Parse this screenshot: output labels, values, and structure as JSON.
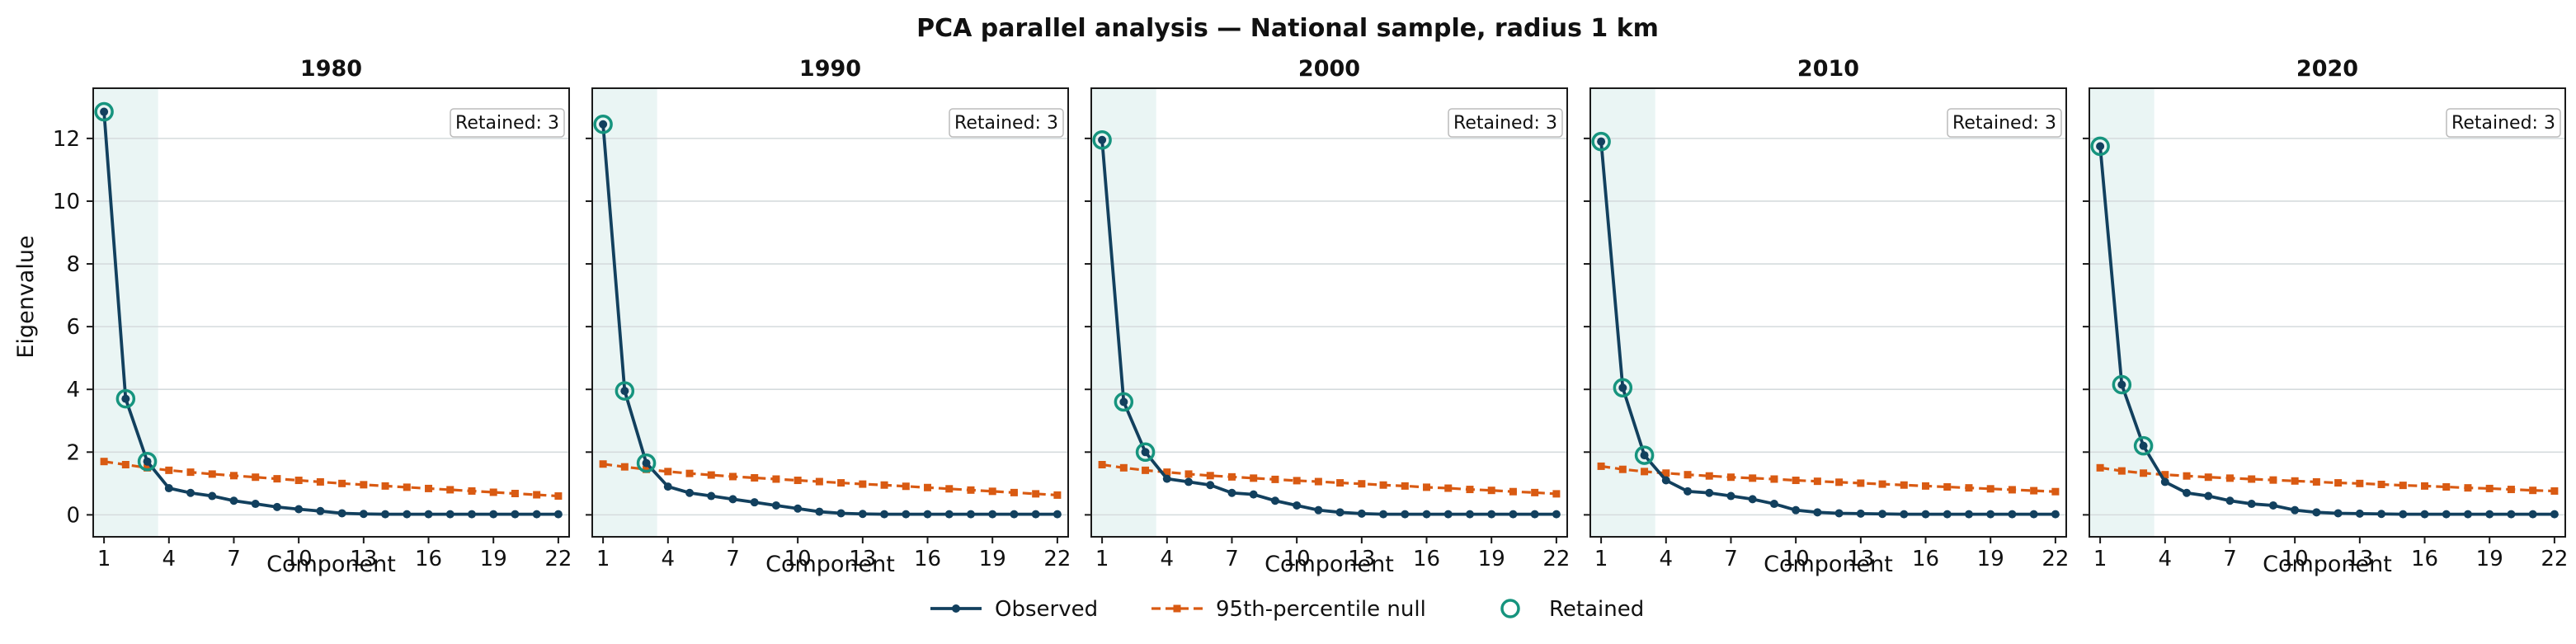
{
  "chart_data": {
    "type": "line",
    "title": "PCA parallel analysis — National sample, radius 1 km",
    "xlabel": "Component",
    "ylabel": "Eigenvalue",
    "xlim": [
      0.5,
      22.5
    ],
    "ylim": [
      -0.7,
      13.6
    ],
    "xticks": [
      1,
      4,
      7,
      10,
      13,
      16,
      19,
      22
    ],
    "yticks": [
      0,
      2,
      4,
      6,
      8,
      10,
      12
    ],
    "grid": "horizontal",
    "legend": {
      "placement": "bottom-center",
      "entries": [
        "Observed",
        "95th-percentile null",
        "Retained"
      ]
    },
    "colors": {
      "observed": "#12405e",
      "null": "#d95a12",
      "retained": "#16947e",
      "shade": "#eaf5f4"
    },
    "panels": [
      {
        "title": "1980",
        "annotation": "Retained: 3",
        "retained": 3,
        "series": [
          {
            "name": "Observed",
            "x": [
              1,
              2,
              3,
              4,
              5,
              6,
              7,
              8,
              9,
              10,
              11,
              12,
              13,
              14,
              15,
              16,
              17,
              18,
              19,
              20,
              21,
              22
            ],
            "values": [
              12.85,
              3.7,
              1.7,
              0.85,
              0.7,
              0.6,
              0.45,
              0.35,
              0.25,
              0.18,
              0.12,
              0.05,
              0.03,
              0.02,
              0.02,
              0.02,
              0.02,
              0.02,
              0.02,
              0.02,
              0.02,
              0.02
            ]
          },
          {
            "name": "95th-percentile null",
            "x": [
              1,
              2,
              3,
              4,
              5,
              6,
              7,
              8,
              9,
              10,
              11,
              12,
              13,
              14,
              15,
              16,
              17,
              18,
              19,
              20,
              21,
              22
            ],
            "values": [
              1.7,
              1.6,
              1.5,
              1.42,
              1.36,
              1.3,
              1.25,
              1.2,
              1.15,
              1.1,
              1.05,
              1.0,
              0.96,
              0.92,
              0.88,
              0.84,
              0.8,
              0.76,
              0.72,
              0.68,
              0.64,
              0.6
            ]
          }
        ]
      },
      {
        "title": "1990",
        "annotation": "Retained: 3",
        "retained": 3,
        "series": [
          {
            "name": "Observed",
            "x": [
              1,
              2,
              3,
              4,
              5,
              6,
              7,
              8,
              9,
              10,
              11,
              12,
              13,
              14,
              15,
              16,
              17,
              18,
              19,
              20,
              21,
              22
            ],
            "values": [
              12.45,
              3.95,
              1.65,
              0.9,
              0.7,
              0.6,
              0.5,
              0.4,
              0.3,
              0.2,
              0.1,
              0.05,
              0.03,
              0.02,
              0.02,
              0.02,
              0.02,
              0.02,
              0.02,
              0.02,
              0.02,
              0.02
            ]
          },
          {
            "name": "95th-percentile null",
            "x": [
              1,
              2,
              3,
              4,
              5,
              6,
              7,
              8,
              9,
              10,
              11,
              12,
              13,
              14,
              15,
              16,
              17,
              18,
              19,
              20,
              21,
              22
            ],
            "values": [
              1.62,
              1.53,
              1.45,
              1.38,
              1.32,
              1.27,
              1.22,
              1.18,
              1.14,
              1.1,
              1.06,
              1.02,
              0.98,
              0.95,
              0.91,
              0.87,
              0.83,
              0.79,
              0.75,
              0.71,
              0.67,
              0.63
            ]
          }
        ]
      },
      {
        "title": "2000",
        "annotation": "Retained: 3",
        "retained": 3,
        "series": [
          {
            "name": "Observed",
            "x": [
              1,
              2,
              3,
              4,
              5,
              6,
              7,
              8,
              9,
              10,
              11,
              12,
              13,
              14,
              15,
              16,
              17,
              18,
              19,
              20,
              21,
              22
            ],
            "values": [
              11.95,
              3.6,
              2.0,
              1.15,
              1.05,
              0.95,
              0.7,
              0.65,
              0.45,
              0.3,
              0.15,
              0.08,
              0.04,
              0.02,
              0.02,
              0.02,
              0.02,
              0.02,
              0.02,
              0.02,
              0.02,
              0.02
            ]
          },
          {
            "name": "95th-percentile null",
            "x": [
              1,
              2,
              3,
              4,
              5,
              6,
              7,
              8,
              9,
              10,
              11,
              12,
              13,
              14,
              15,
              16,
              17,
              18,
              19,
              20,
              21,
              22
            ],
            "values": [
              1.6,
              1.5,
              1.42,
              1.36,
              1.3,
              1.25,
              1.21,
              1.17,
              1.13,
              1.09,
              1.06,
              1.02,
              0.99,
              0.95,
              0.92,
              0.88,
              0.85,
              0.81,
              0.78,
              0.74,
              0.71,
              0.67
            ]
          }
        ]
      },
      {
        "title": "2010",
        "annotation": "Retained: 3",
        "retained": 3,
        "series": [
          {
            "name": "Observed",
            "x": [
              1,
              2,
              3,
              4,
              5,
              6,
              7,
              8,
              9,
              10,
              11,
              12,
              13,
              14,
              15,
              16,
              17,
              18,
              19,
              20,
              21,
              22
            ],
            "values": [
              11.9,
              4.05,
              1.9,
              1.1,
              0.75,
              0.7,
              0.6,
              0.5,
              0.35,
              0.15,
              0.08,
              0.05,
              0.04,
              0.03,
              0.02,
              0.02,
              0.02,
              0.02,
              0.02,
              0.02,
              0.02,
              0.02
            ]
          },
          {
            "name": "95th-percentile null",
            "x": [
              1,
              2,
              3,
              4,
              5,
              6,
              7,
              8,
              9,
              10,
              11,
              12,
              13,
              14,
              15,
              16,
              17,
              18,
              19,
              20,
              21,
              22
            ],
            "values": [
              1.55,
              1.45,
              1.38,
              1.33,
              1.28,
              1.24,
              1.2,
              1.17,
              1.14,
              1.1,
              1.07,
              1.04,
              1.01,
              0.98,
              0.95,
              0.92,
              0.89,
              0.86,
              0.83,
              0.8,
              0.77,
              0.74
            ]
          }
        ]
      },
      {
        "title": "2020",
        "annotation": "Retained: 3",
        "retained": 3,
        "series": [
          {
            "name": "Observed",
            "x": [
              1,
              2,
              3,
              4,
              5,
              6,
              7,
              8,
              9,
              10,
              11,
              12,
              13,
              14,
              15,
              16,
              17,
              18,
              19,
              20,
              21,
              22
            ],
            "values": [
              11.75,
              4.15,
              2.2,
              1.05,
              0.7,
              0.6,
              0.45,
              0.35,
              0.3,
              0.15,
              0.08,
              0.05,
              0.04,
              0.03,
              0.02,
              0.02,
              0.02,
              0.02,
              0.02,
              0.02,
              0.02,
              0.02
            ]
          },
          {
            "name": "95th-percentile null",
            "x": [
              1,
              2,
              3,
              4,
              5,
              6,
              7,
              8,
              9,
              10,
              11,
              12,
              13,
              14,
              15,
              16,
              17,
              18,
              19,
              20,
              21,
              22
            ],
            "values": [
              1.5,
              1.4,
              1.33,
              1.28,
              1.24,
              1.2,
              1.17,
              1.14,
              1.11,
              1.08,
              1.05,
              1.02,
              1.0,
              0.97,
              0.94,
              0.92,
              0.89,
              0.86,
              0.84,
              0.81,
              0.78,
              0.76
            ]
          }
        ]
      }
    ]
  }
}
